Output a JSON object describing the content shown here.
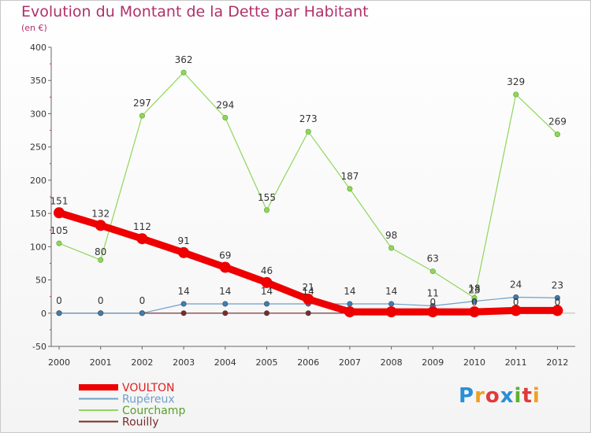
{
  "chart_data": {
    "type": "line",
    "title": "Evolution du Montant de la Dette par Habitant",
    "subtitle": "(en €)",
    "x": [
      "2000",
      "2001",
      "2002",
      "2003",
      "2004",
      "2005",
      "2006",
      "2007",
      "2008",
      "2009",
      "2010",
      "2011",
      "2012"
    ],
    "ylim": [
      -50,
      400
    ],
    "yticks": [
      -50,
      0,
      50,
      100,
      150,
      200,
      250,
      300,
      350,
      400
    ],
    "series": [
      {
        "name": "VOULTON",
        "color": "#ee0000",
        "values": [
          151,
          132,
          112,
          91,
          69,
          46,
          21,
          2,
          2,
          2,
          2,
          4,
          4
        ],
        "labels": [
          "151",
          "132",
          "112",
          "91",
          "69",
          "46",
          "21",
          "",
          "",
          "",
          "",
          "",
          ""
        ]
      },
      {
        "name": "Rupéreux",
        "color": "#6f9fc8",
        "values": [
          0,
          0,
          0,
          14,
          14,
          14,
          14,
          14,
          14,
          11,
          18,
          24,
          23
        ],
        "labels": [
          "0",
          "0",
          "0",
          "14",
          "14",
          "14",
          "14",
          "14",
          "14",
          "11",
          "18",
          "24",
          "23"
        ]
      },
      {
        "name": "Courchamp",
        "color": "#8fd65a",
        "values": [
          105,
          80,
          297,
          362,
          294,
          155,
          273,
          187,
          98,
          63,
          23,
          329,
          269
        ],
        "labels": [
          "105",
          "80",
          "297",
          "362",
          "294",
          "155",
          "273",
          "187",
          "98",
          "63",
          "23",
          "329",
          "269"
        ]
      },
      {
        "name": "Rouilly",
        "color": "#7a2a2a",
        "values": [
          0,
          0,
          0,
          0,
          0,
          0,
          0,
          0,
          0,
          0,
          0,
          0,
          0
        ],
        "labels": [
          "",
          "",
          "",
          "",
          "",
          "",
          "",
          "",
          "",
          "0",
          "0",
          "0",
          "0"
        ]
      }
    ],
    "legend_position": "bottom-left",
    "grid": false
  },
  "logo": {
    "letters": [
      "P",
      "r",
      "o",
      "x",
      "i",
      "t",
      "i"
    ],
    "colors": [
      "#2a8fd6",
      "#f0a020",
      "#e03a3a",
      "#2a8fd6",
      "#60b030",
      "#e03a3a",
      "#f0a020"
    ]
  }
}
